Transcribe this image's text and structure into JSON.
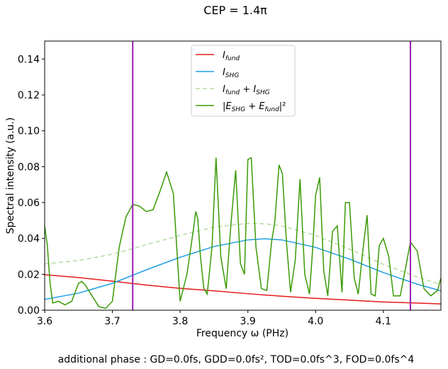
{
  "chart_data": {
    "type": "line",
    "title": "CEP = 1.4π",
    "xlabel": "Frequency ω (PHz)",
    "ylabel": "Spectral intensity (a.u.)",
    "footer": "additional phase : GD=0.0fs, GDD=0.0fs², TOD=0.0fs^3, FOD=0.0fs^4",
    "xlim": [
      3.6,
      4.185
    ],
    "ylim": [
      0,
      0.15
    ],
    "xticks": [
      "3.6",
      "3.7",
      "3.8",
      "3.9",
      "4.0",
      "4.1"
    ],
    "yticks": [
      "0.00",
      "0.02",
      "0.04",
      "0.06",
      "0.08",
      "0.10",
      "0.12",
      "0.14"
    ],
    "grid": false,
    "legend_position": "top-center",
    "vlines": [
      {
        "x": 3.73,
        "color": "#9a1fb0"
      },
      {
        "x": 4.14,
        "color": "#9a1fb0"
      }
    ],
    "series": [
      {
        "name": "I_fund",
        "legend_main": "I",
        "legend_sub": "fund",
        "color": "#e41a1c",
        "dash": "",
        "x": [
          3.6,
          3.65,
          3.7,
          3.75,
          3.8,
          3.85,
          3.9,
          3.95,
          4.0,
          4.05,
          4.1,
          4.15,
          4.185
        ],
        "y": [
          0.0198,
          0.0182,
          0.0162,
          0.014,
          0.0122,
          0.0108,
          0.0092,
          0.0078,
          0.0066,
          0.0056,
          0.0046,
          0.004,
          0.0035
        ]
      },
      {
        "name": "I_SHG",
        "legend_main": "I",
        "legend_sub": "SHG",
        "color": "#1f9fe8",
        "dash": "",
        "x": [
          3.6,
          3.65,
          3.7,
          3.75,
          3.8,
          3.85,
          3.9,
          3.925,
          3.95,
          4.0,
          4.05,
          4.1,
          4.15,
          4.185
        ],
        "y": [
          0.006,
          0.0095,
          0.015,
          0.0225,
          0.0295,
          0.0355,
          0.0392,
          0.0398,
          0.0392,
          0.035,
          0.0285,
          0.021,
          0.0145,
          0.0108
        ]
      },
      {
        "name": "I_fund + I_SHG",
        "legend_main": "I",
        "legend_sub": "fund",
        "legend_plus_main": "I",
        "legend_plus_sub": "SHG",
        "color": "#b5dca0",
        "dash": "6,4",
        "x": [
          3.6,
          3.65,
          3.7,
          3.75,
          3.8,
          3.85,
          3.9,
          3.925,
          3.95,
          4.0,
          4.05,
          4.1,
          4.15,
          4.185
        ],
        "y": [
          0.0258,
          0.0277,
          0.0312,
          0.0365,
          0.0417,
          0.0463,
          0.0484,
          0.0482,
          0.047,
          0.0416,
          0.0341,
          0.0256,
          0.0185,
          0.0143
        ]
      },
      {
        "name": "|E_SHG + E_fund|²",
        "legend_main": "|E",
        "legend_sub": "SHG",
        "legend_plus_main": "E",
        "legend_plus_sub": "fund",
        "legend_tail": "|²",
        "color": "#3a9a06",
        "dash": "",
        "x": [
          3.6,
          3.604,
          3.608,
          3.612,
          3.62,
          3.63,
          3.64,
          3.65,
          3.655,
          3.66,
          3.67,
          3.68,
          3.69,
          3.7,
          3.71,
          3.72,
          3.73,
          3.74,
          3.75,
          3.76,
          3.77,
          3.78,
          3.79,
          3.8,
          3.81,
          3.82,
          3.823,
          3.826,
          3.83,
          3.835,
          3.84,
          3.847,
          3.853,
          3.86,
          3.868,
          3.875,
          3.882,
          3.889,
          3.895,
          3.9,
          3.905,
          3.912,
          3.92,
          3.928,
          3.935,
          3.94,
          3.946,
          3.951,
          3.957,
          3.963,
          3.97,
          3.977,
          3.984,
          3.991,
          3.996,
          4.0,
          4.006,
          4.012,
          4.018,
          4.025,
          4.032,
          4.039,
          4.044,
          4.05,
          4.057,
          4.063,
          4.07,
          4.076,
          4.082,
          4.088,
          4.094,
          4.1,
          4.108,
          4.115,
          4.125,
          4.14,
          4.15,
          4.16,
          4.17,
          4.18,
          4.185
        ],
        "y": [
          0.047,
          0.036,
          0.015,
          0.004,
          0.005,
          0.003,
          0.005,
          0.015,
          0.016,
          0.014,
          0.008,
          0.002,
          0.001,
          0.005,
          0.035,
          0.052,
          0.059,
          0.058,
          0.055,
          0.056,
          0.066,
          0.077,
          0.065,
          0.005,
          0.02,
          0.046,
          0.055,
          0.051,
          0.03,
          0.012,
          0.009,
          0.035,
          0.085,
          0.03,
          0.012,
          0.048,
          0.078,
          0.026,
          0.02,
          0.084,
          0.085,
          0.035,
          0.012,
          0.011,
          0.038,
          0.05,
          0.081,
          0.076,
          0.038,
          0.01,
          0.028,
          0.073,
          0.02,
          0.009,
          0.036,
          0.064,
          0.074,
          0.022,
          0.008,
          0.044,
          0.047,
          0.01,
          0.06,
          0.06,
          0.018,
          0.009,
          0.034,
          0.053,
          0.009,
          0.008,
          0.036,
          0.04,
          0.03,
          0.008,
          0.008,
          0.038,
          0.033,
          0.012,
          0.008,
          0.011,
          0.018
        ]
      }
    ]
  }
}
